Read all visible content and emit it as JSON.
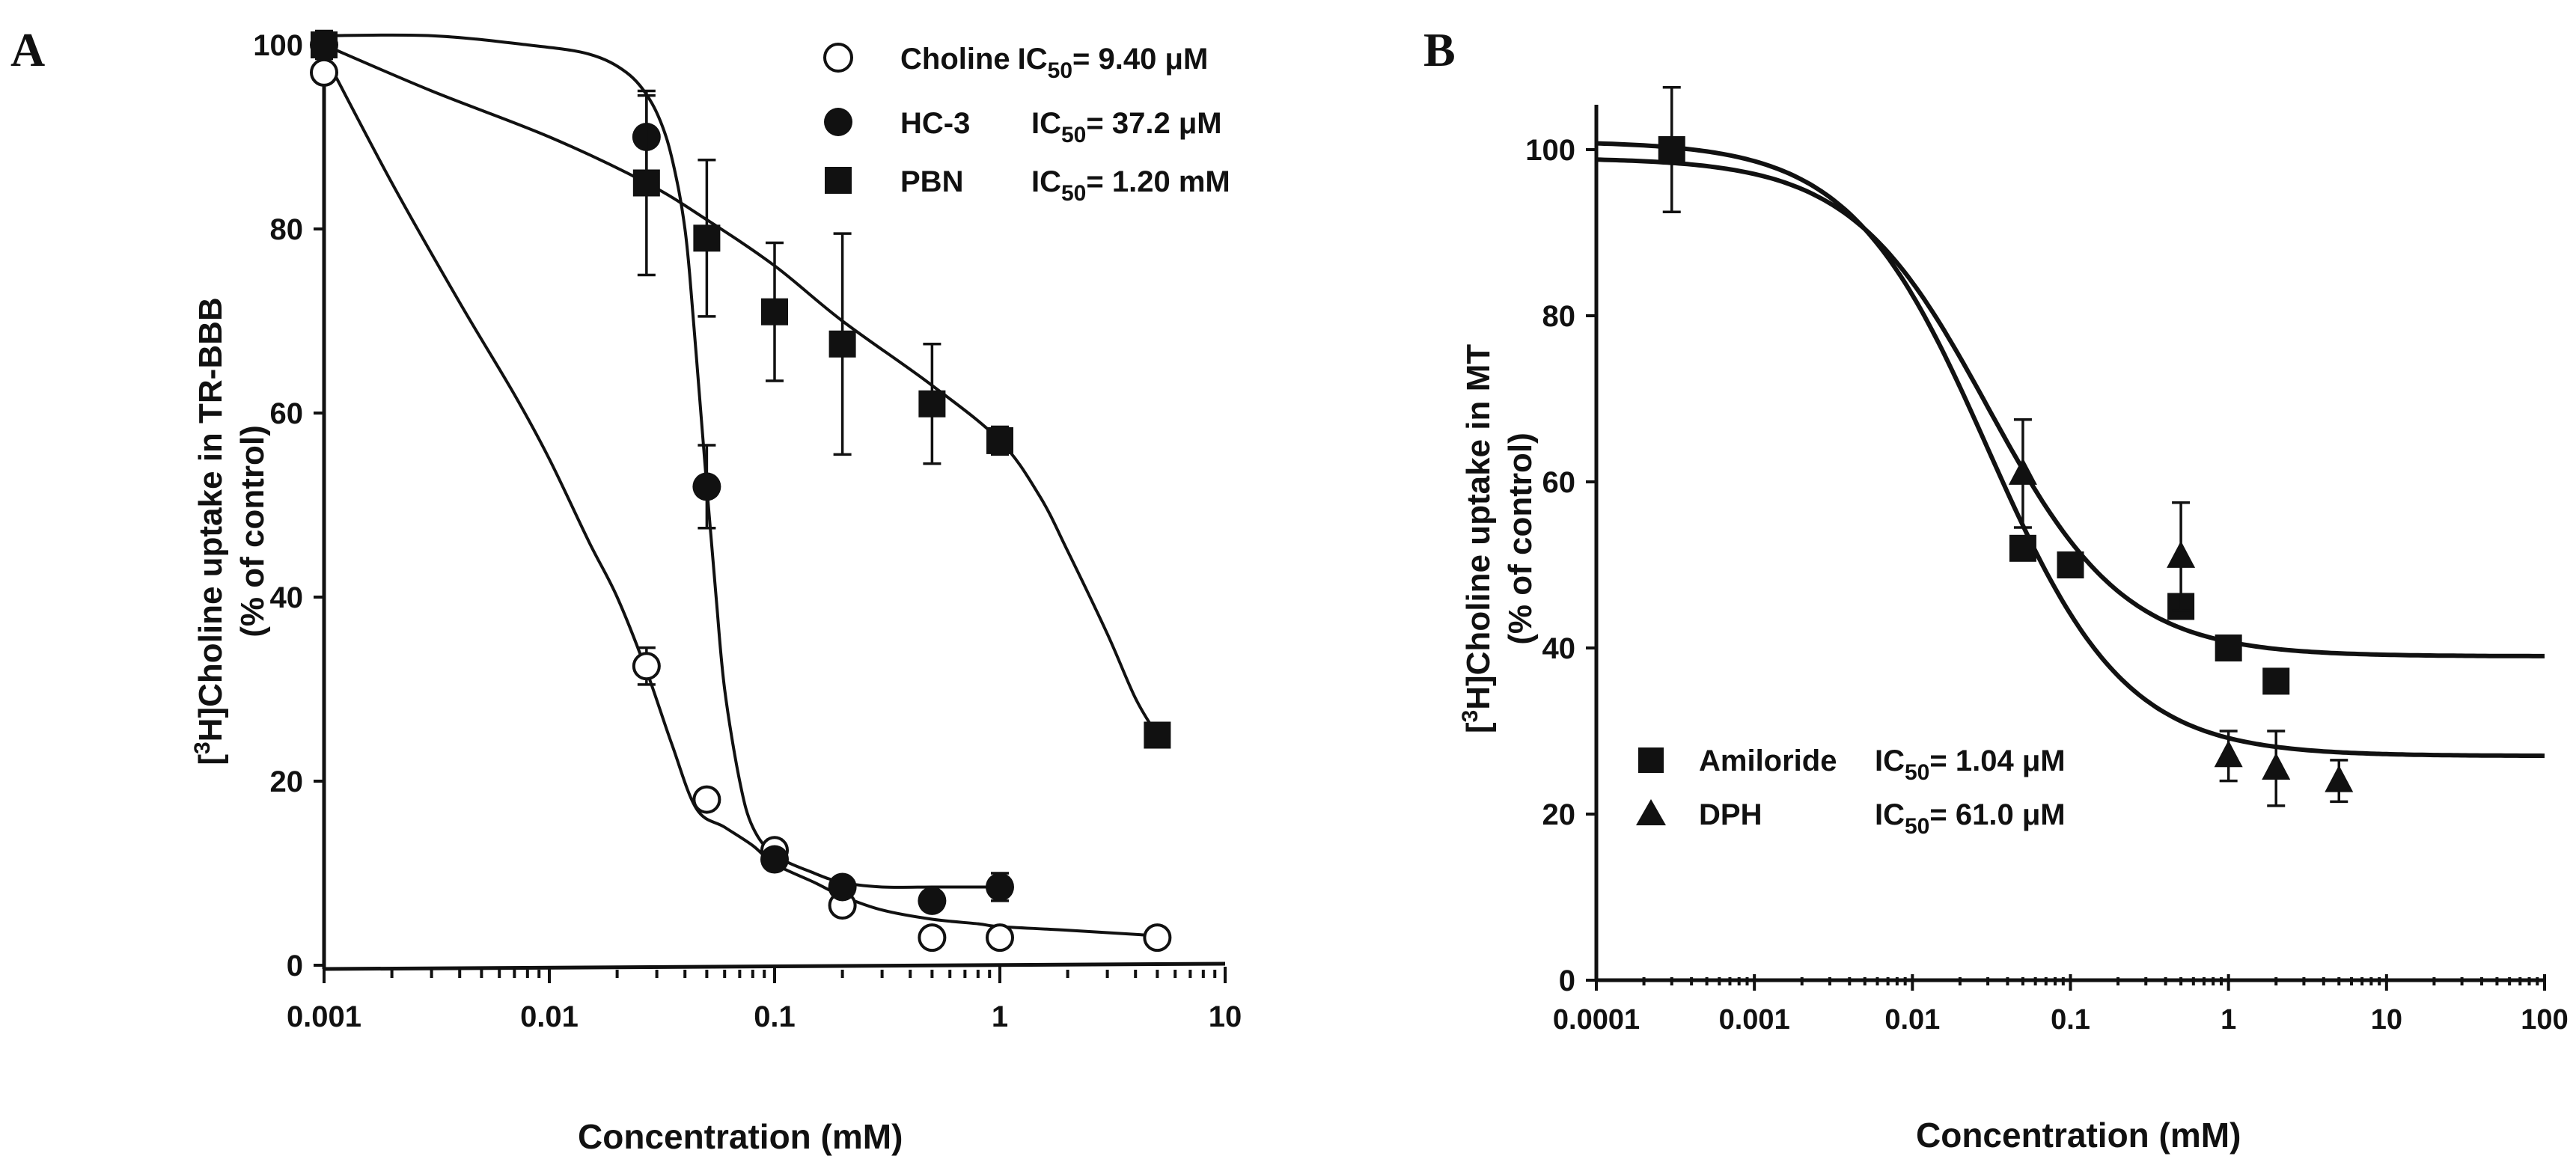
{
  "chart_data": [
    {
      "panel_label": "A",
      "type": "scatter",
      "xscale": "log",
      "xlim": [
        0.001,
        10
      ],
      "ylim": [
        0,
        100
      ],
      "xticks": [
        0.001,
        0.01,
        0.1,
        1,
        10
      ],
      "xticklabels": [
        "0.001",
        "0.01",
        "0.1",
        "1",
        "10"
      ],
      "yticks": [
        0,
        20,
        40,
        60,
        80,
        100
      ],
      "yticklabels": [
        "0",
        "20",
        "40",
        "60",
        "80",
        "100"
      ],
      "xlabel": "Concentration (mM)",
      "ylabel_sup": "3",
      "ylabel_main": "H]Choline uptake in TR-BBB",
      "ylabel_open": "[",
      "ylabel_line2": "(% of control)",
      "legend_position": "top-right",
      "series": [
        {
          "name": "Choline",
          "marker": "open-circle",
          "ic50_label": "IC",
          "ic50_sub": "50",
          "ic50_value": "= 9.40 μM",
          "x": [
            0.001,
            0.027,
            0.05,
            0.1,
            0.2,
            0.5,
            1,
            5
          ],
          "y": [
            97,
            32.5,
            18,
            12.5,
            6.5,
            3,
            3,
            3
          ],
          "err": [
            0,
            2,
            0,
            0,
            0,
            0,
            0,
            0
          ],
          "fit_x": [
            0.001,
            0.002,
            0.004,
            0.007,
            0.01,
            0.015,
            0.02,
            0.027,
            0.035,
            0.045,
            0.06,
            0.08,
            0.1,
            0.15,
            0.2,
            0.3,
            0.5,
            0.8,
            1,
            2,
            5
          ],
          "fit_y": [
            99,
            85,
            72,
            62,
            55,
            46,
            40,
            32,
            24,
            17,
            15,
            13,
            11,
            9,
            7.5,
            6,
            5,
            4.5,
            4.2,
            3.8,
            3.2
          ]
        },
        {
          "name": "HC-3",
          "marker": "filled-circle",
          "ic50_label": "IC",
          "ic50_sub": "50",
          "ic50_value": "= 37.2 μM",
          "x": [
            0.001,
            0.027,
            0.05,
            0.1,
            0.2,
            0.5,
            1
          ],
          "y": [
            100,
            90,
            52,
            11.5,
            8.5,
            7,
            8.5
          ],
          "err": [
            0,
            4.5,
            4.5,
            0,
            0,
            0,
            1.5
          ],
          "fit_x": [
            0.001,
            0.003,
            0.008,
            0.015,
            0.022,
            0.028,
            0.033,
            0.037,
            0.04,
            0.042,
            0.045,
            0.05,
            0.055,
            0.06,
            0.07,
            0.08,
            0.1,
            0.15,
            0.2,
            0.3,
            0.5,
            0.7,
            1
          ],
          "fit_y": [
            101,
            101,
            100,
            99,
            97,
            94,
            90,
            85,
            80,
            75,
            66,
            52,
            40,
            30,
            20,
            15,
            12,
            10,
            9,
            8.5,
            8.5,
            8.5,
            8.5
          ]
        },
        {
          "name": "PBN",
          "marker": "filled-square",
          "ic50_label": "IC",
          "ic50_sub": "50",
          "ic50_value": "= 1.20 mM",
          "x": [
            0.001,
            0.027,
            0.05,
            0.1,
            0.2,
            0.5,
            1,
            5
          ],
          "y": [
            100,
            85,
            79,
            71,
            67.5,
            61,
            57,
            25
          ],
          "err": [
            1.5,
            10,
            8.5,
            7.5,
            12,
            6.5,
            1.5,
            0
          ],
          "fit_x": [
            0.001,
            0.003,
            0.01,
            0.027,
            0.05,
            0.1,
            0.2,
            0.5,
            1,
            1.5,
            2,
            3,
            4,
            5
          ],
          "fit_y": [
            100,
            95,
            90,
            85,
            81,
            76,
            70,
            63,
            57,
            51,
            45,
            36,
            29,
            25
          ]
        }
      ]
    },
    {
      "panel_label": "B",
      "type": "scatter",
      "xscale": "log",
      "xlim": [
        0.0001,
        100
      ],
      "ylim": [
        0,
        100
      ],
      "xticks": [
        0.0001,
        0.001,
        0.01,
        0.1,
        1,
        10,
        100
      ],
      "xticklabels": [
        "0.0001",
        "0.001",
        "0.01",
        "0.1",
        "1",
        "10",
        "100"
      ],
      "yticks": [
        0,
        20,
        40,
        60,
        80,
        100
      ],
      "yticklabels": [
        "0",
        "20",
        "40",
        "60",
        "80",
        "100"
      ],
      "xlabel": "Concentration (mM)",
      "ylabel_sup": "3",
      "ylabel_main": "H]Choline uptake in MT",
      "ylabel_open": "[",
      "ylabel_line2": "(% of control)",
      "legend_position": "bottom-left",
      "series": [
        {
          "name": "Amiloride",
          "marker": "filled-square",
          "ic50_label": "IC",
          "ic50_sub": "50",
          "ic50_value": "= 1.04 μM",
          "x": [
            0.0003,
            0.05,
            0.1,
            0.5,
            1,
            2
          ],
          "y": [
            100,
            52,
            50,
            45,
            40,
            36
          ],
          "err": [
            7.5,
            0,
            0,
            0,
            0,
            0
          ],
          "fit": {
            "top": 99,
            "bottom": 39,
            "ec50": 0.03,
            "hill": 1.0
          }
        },
        {
          "name": "DPH",
          "marker": "filled-triangle",
          "ic50_label": "IC",
          "ic50_sub": "50",
          "ic50_value": "= 61.0 μM",
          "x": [
            0.05,
            0.5,
            1,
            2,
            5
          ],
          "y": [
            61,
            51,
            27,
            25.5,
            24
          ],
          "err": [
            6.5,
            6.5,
            3,
            4.5,
            2.5
          ],
          "fit": {
            "top": 101,
            "bottom": 27,
            "ec50": 0.03,
            "hill": 1.0
          }
        }
      ]
    }
  ]
}
